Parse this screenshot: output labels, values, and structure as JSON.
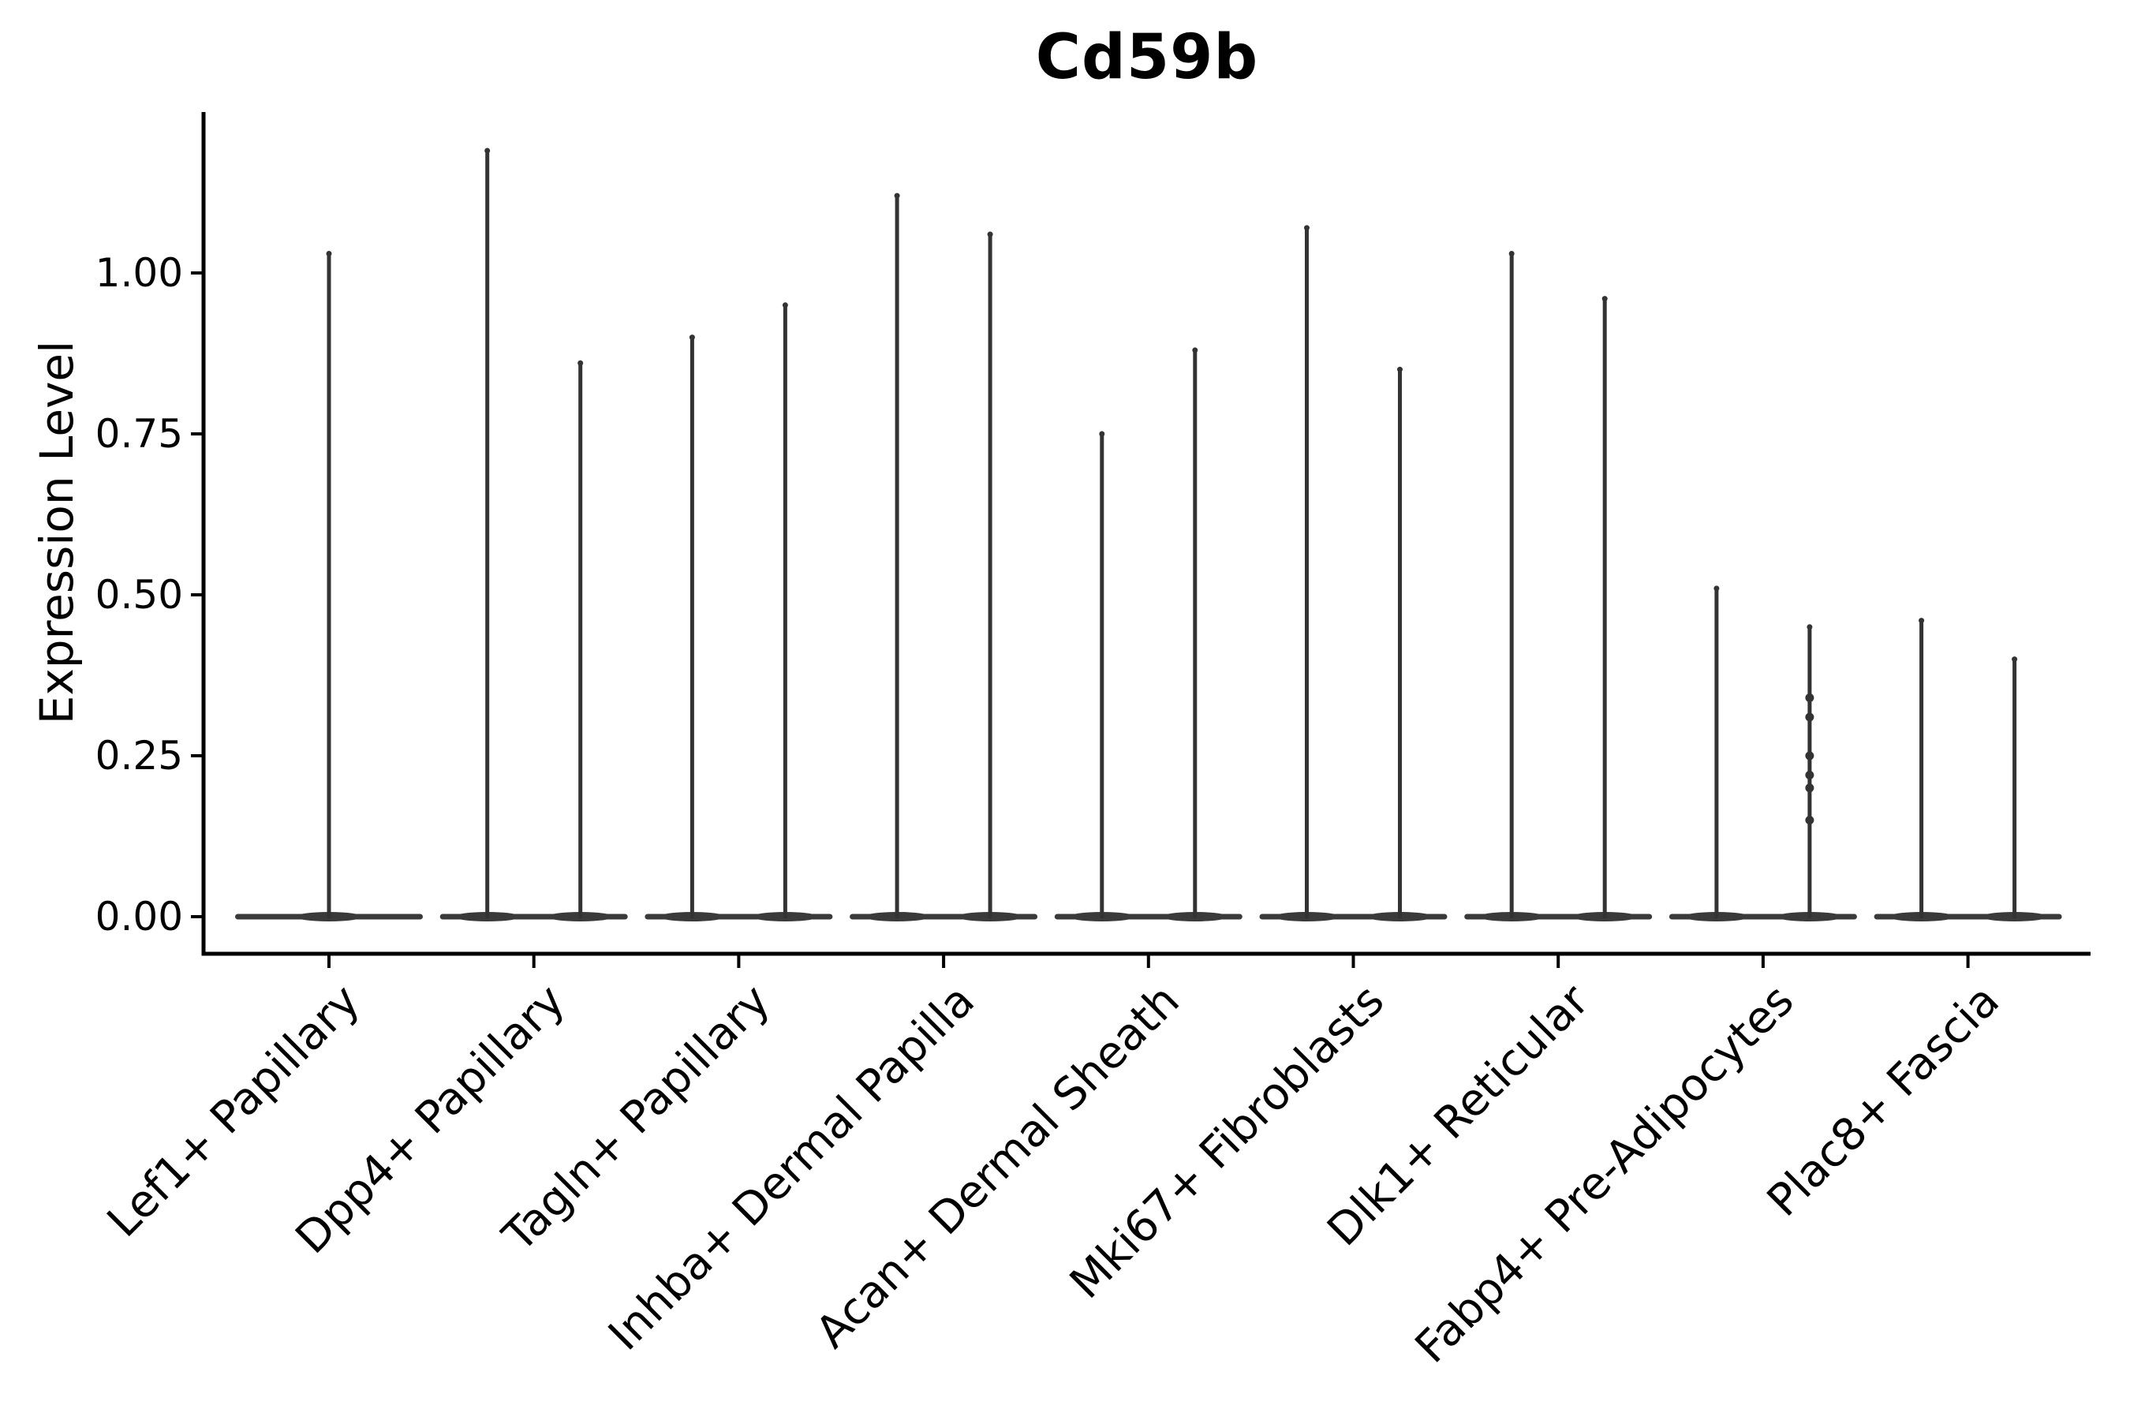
{
  "chart_data": {
    "type": "violin",
    "title": "Cd59b",
    "ylabel": "Expression Level",
    "xlabel": "",
    "legend": "none",
    "grid": false,
    "ylim": [
      -0.06,
      1.25
    ],
    "ytick_values": [
      0,
      0.25,
      0.5,
      0.75,
      1.0
    ],
    "ytick_labels": [
      "0.00",
      "0.25",
      "0.50",
      "0.75",
      "1.00"
    ],
    "categories": [
      "Lef1+ Papillary",
      "Dpp4+ Papillary",
      "Tagln+ Papillary",
      "Inhba+ Dermal Papilla",
      "Acan+ Dermal Sheath",
      "Mki67+ Fibroblasts",
      "Dlk1+ Reticular",
      "Fabp4+ Pre-Adipocytes",
      "Plac8+ Fascia"
    ],
    "series": [
      {
        "category": "Lef1+ Papillary",
        "violins": [
          {
            "max": 1.03,
            "points": []
          }
        ]
      },
      {
        "category": "Dpp4+ Papillary",
        "violins": [
          {
            "max": 1.19,
            "points": []
          },
          {
            "max": 0.86,
            "points": []
          }
        ]
      },
      {
        "category": "Tagln+ Papillary",
        "violins": [
          {
            "max": 0.9,
            "points": []
          },
          {
            "max": 0.95,
            "points": []
          }
        ]
      },
      {
        "category": "Inhba+ Dermal Papilla",
        "violins": [
          {
            "max": 1.12,
            "points": []
          },
          {
            "max": 1.06,
            "points": []
          }
        ]
      },
      {
        "category": "Acan+ Dermal Sheath",
        "violins": [
          {
            "max": 0.75,
            "points": []
          },
          {
            "max": 0.88,
            "points": []
          }
        ]
      },
      {
        "category": "Mki67+ Fibroblasts",
        "violins": [
          {
            "max": 1.07,
            "points": []
          },
          {
            "max": 0.85,
            "points": []
          }
        ]
      },
      {
        "category": "Dlk1+ Reticular",
        "violins": [
          {
            "max": 1.03,
            "points": []
          },
          {
            "max": 0.96,
            "points": []
          }
        ]
      },
      {
        "category": "Fabp4+ Pre-Adipocytes",
        "violins": [
          {
            "max": 0.51,
            "points": []
          },
          {
            "max": 0.45,
            "points": [
              0.34,
              0.31,
              0.25,
              0.22,
              0.2,
              0.15
            ]
          }
        ]
      },
      {
        "category": "Plac8+ Fascia",
        "violins": [
          {
            "max": 0.46,
            "points": []
          },
          {
            "max": 0.4,
            "points": []
          }
        ]
      }
    ],
    "violin_shape_note": "each violin is a flat wide base at 0 with a single thin spike up to its max",
    "colors": {
      "violin": "#333333",
      "violin_base": "#3a3a3a",
      "axis": "#000000",
      "text": "#000000",
      "background": "#ffffff"
    }
  }
}
